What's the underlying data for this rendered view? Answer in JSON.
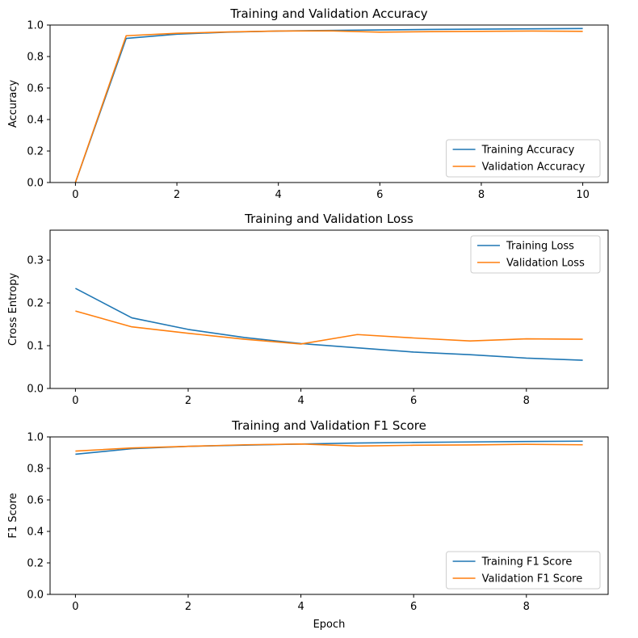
{
  "colors": {
    "training": "#1f77b4",
    "validation": "#ff7f0e"
  },
  "chart_data": [
    {
      "type": "line",
      "title": "Training and Validation Accuracy",
      "xlabel": "",
      "ylabel": "Accuracy",
      "xlim": [
        -0.5,
        10.5
      ],
      "ylim": [
        0.0,
        1.0
      ],
      "xticks": [
        0,
        2,
        4,
        6,
        8,
        10
      ],
      "xtick_labels": [
        "0",
        "2",
        "4",
        "6",
        "8",
        "10"
      ],
      "yticks": [
        0.0,
        0.2,
        0.4,
        0.6,
        0.8,
        1.0
      ],
      "ytick_labels": [
        "0.0",
        "0.2",
        "0.4",
        "0.6",
        "0.8",
        "1.0"
      ],
      "grid": false,
      "legend_position": "lower-right",
      "x": [
        0,
        1,
        2,
        3,
        4,
        5,
        6,
        7,
        8,
        9,
        10
      ],
      "series": [
        {
          "name": "Training Accuracy",
          "color_key": "training",
          "values": [
            0.0,
            0.915,
            0.942,
            0.955,
            0.962,
            0.966,
            0.969,
            0.972,
            0.974,
            0.976,
            0.978
          ]
        },
        {
          "name": "Validation Accuracy",
          "color_key": "validation",
          "values": [
            0.0,
            0.932,
            0.948,
            0.956,
            0.962,
            0.963,
            0.955,
            0.958,
            0.96,
            0.962,
            0.96
          ]
        }
      ]
    },
    {
      "type": "line",
      "title": "Training and Validation Loss",
      "xlabel": "",
      "ylabel": "Cross Entropy",
      "xlim": [
        -0.45,
        9.45
      ],
      "ylim": [
        0.0,
        0.37
      ],
      "xticks": [
        0,
        2,
        4,
        6,
        8
      ],
      "xtick_labels": [
        "0",
        "2",
        "4",
        "6",
        "8"
      ],
      "yticks": [
        0.0,
        0.1,
        0.2,
        0.3
      ],
      "ytick_labels": [
        "0.0",
        "0.1",
        "0.2",
        "0.3"
      ],
      "grid": false,
      "legend_position": "upper-right",
      "x": [
        0,
        1,
        2,
        3,
        4,
        5,
        6,
        7,
        8,
        9
      ],
      "series": [
        {
          "name": "Training Loss",
          "color_key": "training",
          "values": [
            0.234,
            0.165,
            0.138,
            0.119,
            0.105,
            0.095,
            0.085,
            0.079,
            0.071,
            0.066
          ]
        },
        {
          "name": "Validation Loss",
          "color_key": "validation",
          "values": [
            0.181,
            0.144,
            0.129,
            0.115,
            0.104,
            0.126,
            0.118,
            0.111,
            0.116,
            0.115
          ]
        }
      ]
    },
    {
      "type": "line",
      "title": "Training and Validation F1 Score",
      "xlabel": "Epoch",
      "ylabel": "F1 Score",
      "xlim": [
        -0.45,
        9.45
      ],
      "ylim": [
        0.0,
        1.0
      ],
      "xticks": [
        0,
        2,
        4,
        6,
        8
      ],
      "xtick_labels": [
        "0",
        "2",
        "4",
        "6",
        "8"
      ],
      "yticks": [
        0.0,
        0.2,
        0.4,
        0.6,
        0.8,
        1.0
      ],
      "ytick_labels": [
        "0.0",
        "0.2",
        "0.4",
        "0.6",
        "0.8",
        "1.0"
      ],
      "grid": false,
      "legend_position": "lower-right",
      "x": [
        0,
        1,
        2,
        3,
        4,
        5,
        6,
        7,
        8,
        9
      ],
      "series": [
        {
          "name": "Training F1 Score",
          "color_key": "training",
          "values": [
            0.89,
            0.925,
            0.94,
            0.948,
            0.955,
            0.961,
            0.965,
            0.968,
            0.971,
            0.973
          ]
        },
        {
          "name": "Validation F1 Score",
          "color_key": "validation",
          "values": [
            0.91,
            0.93,
            0.94,
            0.95,
            0.955,
            0.942,
            0.947,
            0.949,
            0.953,
            0.95
          ]
        }
      ]
    }
  ]
}
